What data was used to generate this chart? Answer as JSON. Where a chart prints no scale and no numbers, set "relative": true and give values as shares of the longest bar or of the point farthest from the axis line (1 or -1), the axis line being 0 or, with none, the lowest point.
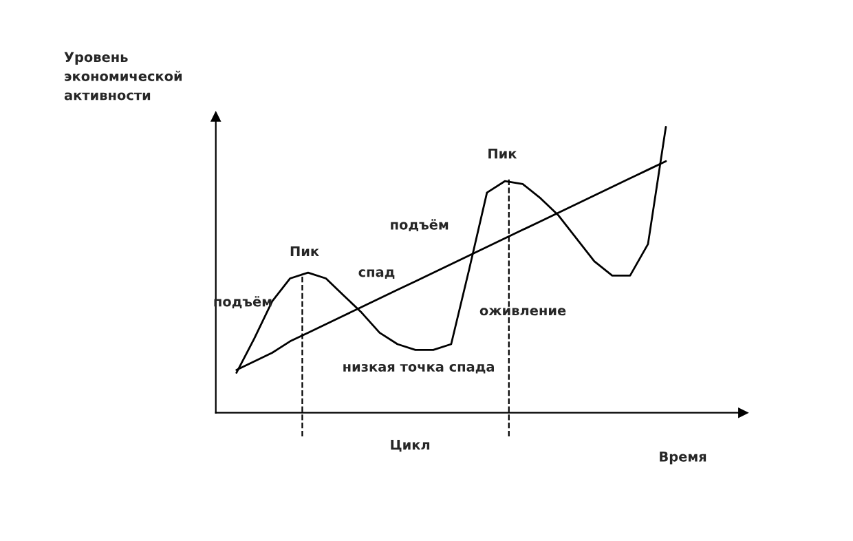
{
  "chart_data": {
    "type": "line",
    "relative": true,
    "xlabel": "Время",
    "ylabel": "Уровень\nэкономической\nактивности",
    "categories": [
      null,
      null,
      null,
      null,
      null,
      null,
      null,
      null,
      null,
      null,
      null,
      null,
      null,
      null,
      null,
      null,
      null,
      null,
      null,
      null,
      null,
      null,
      null,
      null,
      null
    ],
    "marker": "none",
    "line_style": "solid",
    "series": [
      {
        "color": "#000000",
        "values": [
          0.14,
          0.26,
          0.39,
          0.47,
          0.49,
          0.47,
          0.41,
          0.35,
          0.28,
          0.24,
          0.22,
          0.22,
          0.24,
          0.5,
          0.77,
          0.81,
          0.8,
          0.75,
          0.69,
          0.61,
          0.53,
          0.48,
          0.48,
          0.59,
          1.0
        ]
      },
      {
        "color": "#000000",
        "values": [
          0.15,
          0.18,
          0.21,
          0.25,
          0.28,
          0.31,
          0.34,
          0.37,
          0.4,
          0.43,
          0.46,
          0.49,
          0.52,
          0.55,
          0.58,
          0.61,
          0.64,
          0.67,
          0.7,
          0.73,
          0.76,
          0.79,
          0.82,
          0.85,
          0.88
        ]
      }
    ],
    "annotations": [
      "подъём",
      "Пик",
      "спад",
      "низкая точка спада",
      "подъём",
      "оживление",
      "Пик",
      "Цикл"
    ]
  }
}
